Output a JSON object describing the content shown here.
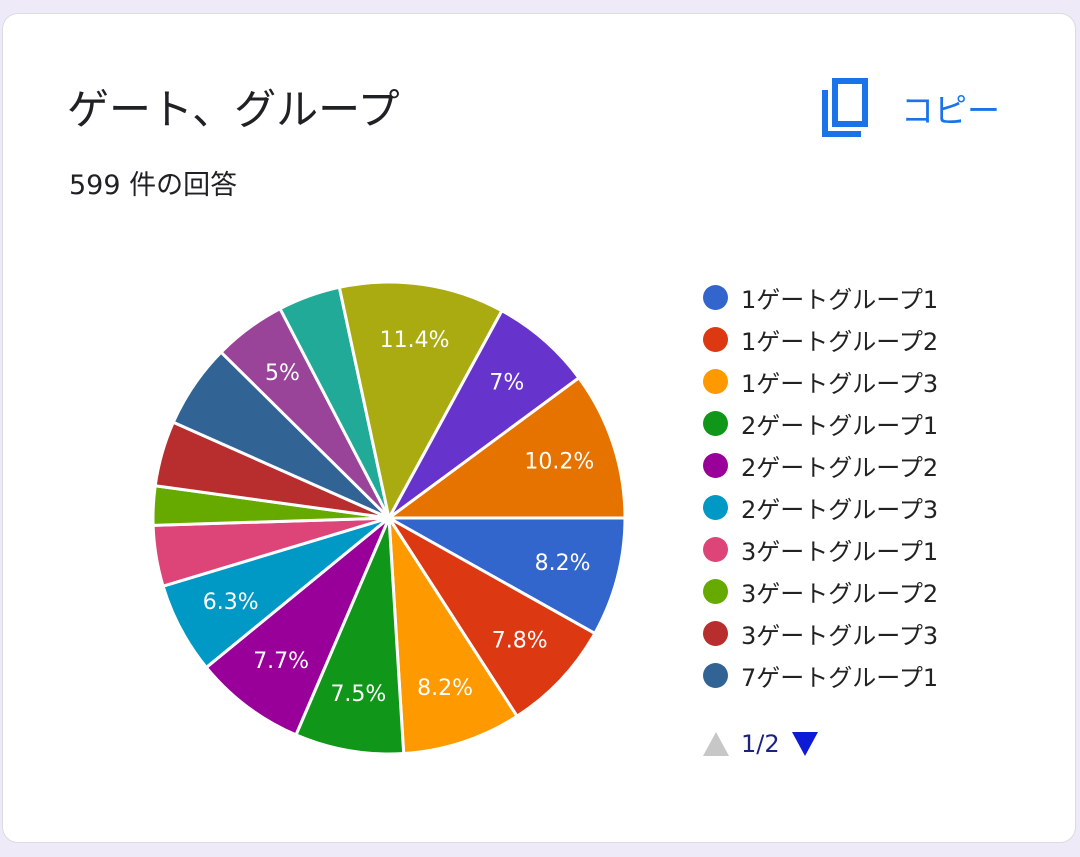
{
  "header": {
    "title": "ゲート、グループ",
    "responses": "599 件の回答",
    "copy_label": "コピー",
    "copy_icon": "copy-icon"
  },
  "pager": {
    "text": "1/2",
    "prev_icon": "triangle-up-icon",
    "next_icon": "triangle-down-icon"
  },
  "chart_data": {
    "type": "pie",
    "legend_position": "right",
    "slices": [
      {
        "label": "1ゲートグループ1",
        "value": 8.2,
        "display": "8.2%",
        "color": "#3366cc",
        "in_legend": true
      },
      {
        "label": "1ゲートグループ2",
        "value": 7.8,
        "display": "7.8%",
        "color": "#dc3912",
        "in_legend": true
      },
      {
        "label": "1ゲートグループ3",
        "value": 8.2,
        "display": "8.2%",
        "color": "#ff9900",
        "in_legend": true
      },
      {
        "label": "2ゲートグループ1",
        "value": 7.5,
        "display": "7.5%",
        "color": "#109618",
        "in_legend": true
      },
      {
        "label": "2ゲートグループ2",
        "value": 7.7,
        "display": "7.7%",
        "color": "#990099",
        "in_legend": true
      },
      {
        "label": "2ゲートグループ3",
        "value": 6.3,
        "display": "6.3%",
        "color": "#0099c6",
        "in_legend": true
      },
      {
        "label": "3ゲートグループ1",
        "value": 4.2,
        "display": "",
        "color": "#dd4477",
        "in_legend": true
      },
      {
        "label": "3ゲートグループ2",
        "value": 2.7,
        "display": "",
        "color": "#66aa00",
        "in_legend": true
      },
      {
        "label": "3ゲートグループ3",
        "value": 4.5,
        "display": "",
        "color": "#b82e2e",
        "in_legend": true
      },
      {
        "label": "7ゲートグループ1",
        "value": 5.8,
        "display": "",
        "color": "#316395",
        "in_legend": true
      },
      {
        "label": "",
        "value": 5.0,
        "display": "5%",
        "color": "#994499",
        "in_legend": false
      },
      {
        "label": "",
        "value": 4.3,
        "display": "",
        "color": "#22aa99",
        "in_legend": false
      },
      {
        "label": "",
        "value": 11.4,
        "display": "11.4%",
        "color": "#aaaa11",
        "in_legend": false
      },
      {
        "label": "",
        "value": 7.0,
        "display": "7%",
        "color": "#6633cc",
        "in_legend": false
      },
      {
        "label": "",
        "value": 10.2,
        "display": "10.2%",
        "color": "#e67300",
        "in_legend": false
      }
    ]
  }
}
